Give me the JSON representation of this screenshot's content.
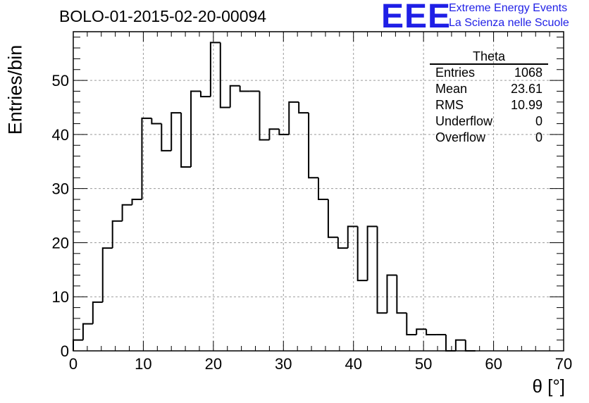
{
  "title": "BOLO-01-2015-02-20-00094",
  "logo": {
    "mark": "EEE",
    "line1": "Extreme Energy Events",
    "line2": "La Scienza nelle Scuole",
    "color": "#1f1fe6"
  },
  "stats": {
    "title": "Theta",
    "rows": [
      {
        "label": "Entries",
        "value": "1068"
      },
      {
        "label": "Mean",
        "value": "23.61"
      },
      {
        "label": "RMS",
        "value": "10.99"
      },
      {
        "label": "Underflow",
        "value": "0"
      },
      {
        "label": "Overflow",
        "value": "0"
      }
    ]
  },
  "chart_data": {
    "type": "bar",
    "subtype": "step-histogram",
    "title": "BOLO-01-2015-02-20-00094",
    "xlabel": "θ [°]",
    "ylabel": "Entries/bin",
    "xlim": [
      0,
      70
    ],
    "ylim": [
      0,
      59
    ],
    "bin_width": 1.4,
    "bin_low_edges": [
      0,
      1.4,
      2.8,
      4.2,
      5.6,
      7.0,
      8.4,
      9.8,
      11.2,
      12.6,
      14.0,
      15.4,
      16.8,
      18.2,
      19.6,
      21.0,
      22.4,
      23.8,
      25.2,
      26.6,
      28.0,
      29.4,
      30.8,
      32.2,
      33.6,
      35.0,
      36.4,
      37.8,
      39.2,
      40.6,
      42.0,
      43.4,
      44.8,
      46.2,
      47.6,
      49.0,
      50.4,
      51.8,
      53.2,
      54.6,
      56.0
    ],
    "values": [
      2,
      5,
      9,
      19,
      24,
      27,
      28,
      43,
      42,
      37,
      44,
      34,
      48,
      47,
      57,
      45,
      49,
      48,
      48,
      39,
      41,
      40,
      46,
      44,
      32,
      28,
      21,
      19,
      23,
      13,
      23,
      7,
      14,
      7,
      3,
      4,
      3,
      3,
      0,
      2,
      0
    ],
    "x_ticks": [
      "0",
      "10",
      "20",
      "30",
      "40",
      "50",
      "60",
      "70"
    ],
    "y_ticks": [
      "0",
      "10",
      "20",
      "30",
      "40",
      "50"
    ],
    "grid": true,
    "line_color": "#000000"
  }
}
